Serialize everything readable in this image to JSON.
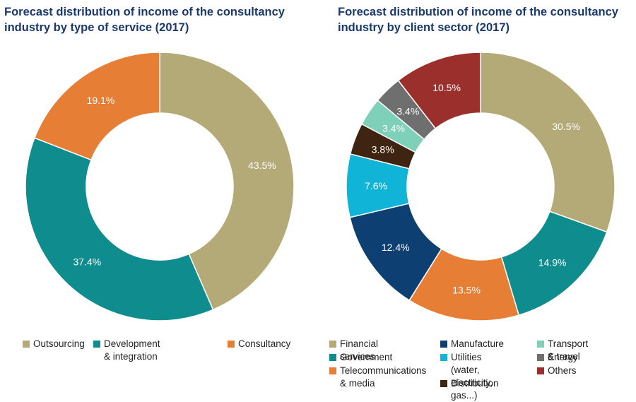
{
  "chart_data": [
    {
      "type": "pie",
      "title": "Forecast distribution of income of the consultancy industry by type of service (2017)",
      "categories": [
        "Outsourcing",
        "Development & integration",
        "Consultancy"
      ],
      "values": [
        43.5,
        37.4,
        19.1
      ],
      "value_labels": [
        "43.5%",
        "37.4%",
        "19.1%"
      ],
      "colors": [
        "#b3aa78",
        "#0f8c8e",
        "#e67e35"
      ],
      "donut": true,
      "legend_position": "bottom"
    },
    {
      "type": "pie",
      "title": "Forecast distribution of income of the consultancy industry by client sector (2017)",
      "categories": [
        "Financial services",
        "Government",
        "Telecommunications\n& media",
        "Manufacture",
        "Utilities (water,\nelectricity, gas...)",
        "Distribution",
        "Transport & travel",
        "Energy",
        "Others"
      ],
      "values": [
        30.5,
        14.9,
        13.5,
        12.4,
        7.6,
        3.8,
        3.4,
        3.4,
        10.5
      ],
      "value_labels": [
        "30.5%",
        "14.9%",
        "13.5%",
        "12.4%",
        "7.6%",
        "3.8%",
        "3.4%",
        "3.4%",
        "10.5%"
      ],
      "colors": [
        "#b3aa78",
        "#0f8c8e",
        "#e67e35",
        "#0e3f73",
        "#0fb4d6",
        "#3f2411",
        "#7fd0b9",
        "#6f6f6f",
        "#9b2f2c"
      ],
      "donut": true,
      "legend_position": "bottom"
    }
  ]
}
